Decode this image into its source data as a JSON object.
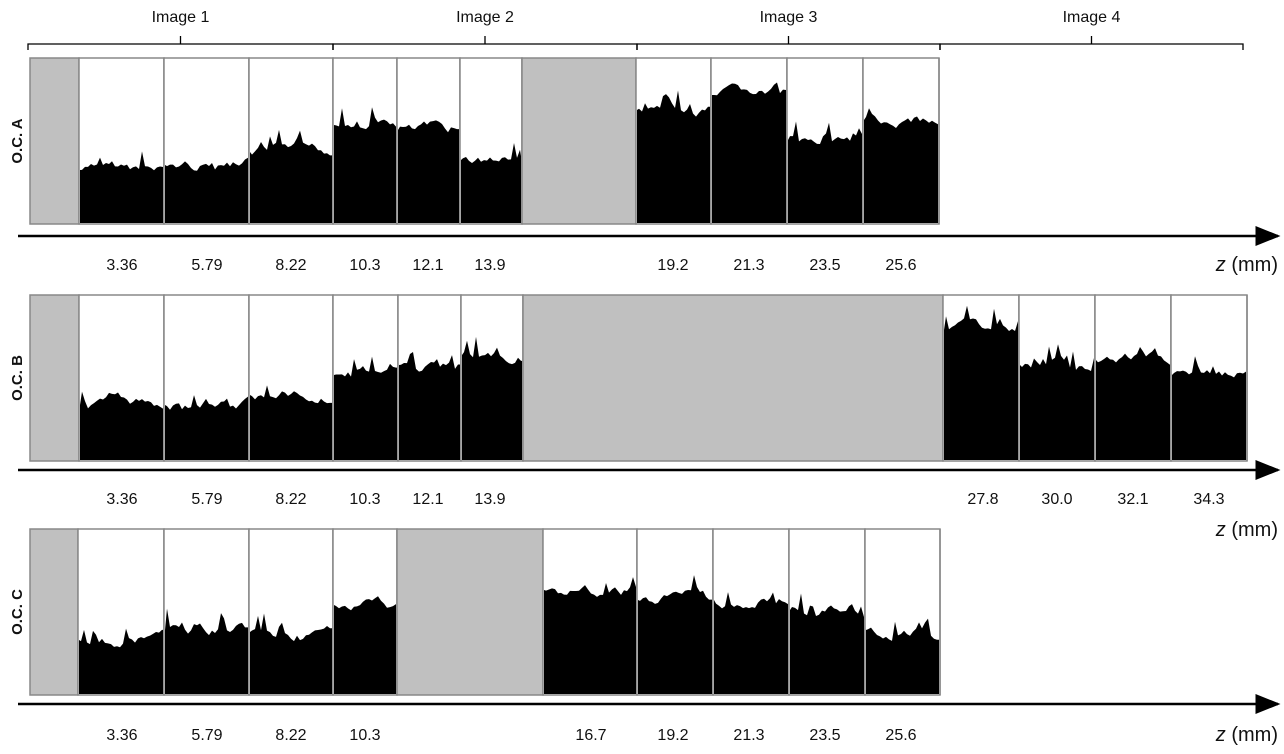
{
  "images": [
    "Image 1",
    "Image 2",
    "Image 3",
    "Image 4"
  ],
  "rows": [
    {
      "label": "O.C. A",
      "ticks": [
        "3.36",
        "5.79",
        "8.22",
        "10.3",
        "12.1",
        "13.9",
        "19.2",
        "21.3",
        "23.5",
        "25.6"
      ]
    },
    {
      "label": "O.C. B",
      "ticks": [
        "3.36",
        "5.79",
        "8.22",
        "10.3",
        "12.1",
        "13.9",
        "27.8",
        "30.0",
        "32.1",
        "34.3"
      ]
    },
    {
      "label": "O.C. C",
      "ticks": [
        "3.36",
        "5.79",
        "8.22",
        "10.3",
        "16.7",
        "19.2",
        "21.3",
        "23.5",
        "25.6"
      ]
    }
  ],
  "axis_label": {
    "variable": "z",
    "unit": "(mm)"
  }
}
